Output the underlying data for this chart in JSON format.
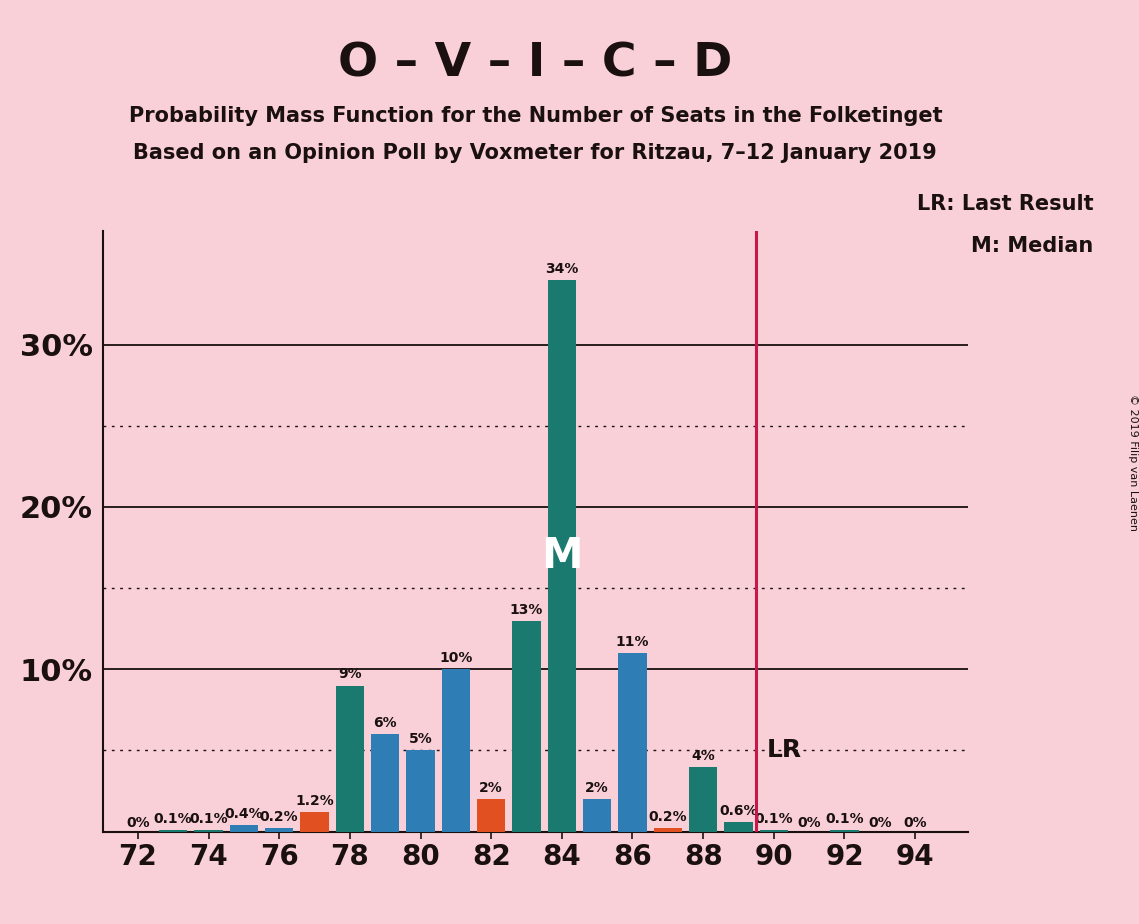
{
  "title_main": "O – V – I – C – D",
  "subtitle1": "Probability Mass Function for the Number of Seats in the Folketinget",
  "subtitle2": "Based on an Opinion Poll by Voxmeter for Ritzau, 7–12 January 2019",
  "copyright": "© 2019 Filip van Laenen",
  "seats": [
    72,
    73,
    74,
    75,
    76,
    77,
    78,
    79,
    80,
    81,
    82,
    83,
    84,
    85,
    86,
    87,
    88,
    89,
    90,
    91,
    92,
    93,
    94
  ],
  "values": [
    0.0,
    0.1,
    0.1,
    0.4,
    0.2,
    1.2,
    9.0,
    6.0,
    5.0,
    10.0,
    2.0,
    13.0,
    34.0,
    2.0,
    11.0,
    0.2,
    4.0,
    0.6,
    0.1,
    0.0,
    0.1,
    0.0,
    0.0
  ],
  "labels": [
    "0%",
    "0.1%",
    "0.1%",
    "0.4%",
    "0.2%",
    "1.2%",
    "9%",
    "6%",
    "5%",
    "10%",
    "2%",
    "13%",
    "34%",
    "2%",
    "11%",
    "0.2%",
    "4%",
    "0.6%",
    "0.1%",
    "0%",
    "0.1%",
    "0%",
    "0%"
  ],
  "colors": [
    "#1b7a70",
    "#1b7a70",
    "#1b7a70",
    "#2e7db5",
    "#2e7db5",
    "#e05020",
    "#1b7a70",
    "#2e7db5",
    "#2e7db5",
    "#2e7db5",
    "#e05020",
    "#1b7a70",
    "#1b7a70",
    "#2e7db5",
    "#2e7db5",
    "#e05020",
    "#1b7a70",
    "#1b7a70",
    "#1b7a70",
    "#1b7a70",
    "#1b7a70",
    "#1b7a70",
    "#1b7a70"
  ],
  "lr_line_x": 89.5,
  "median_x": 84,
  "bg_color": "#f9d0d8",
  "ylim": [
    0,
    37
  ],
  "xlim": [
    71.0,
    95.5
  ],
  "bar_width": 0.8,
  "xtick_positions": [
    72,
    74,
    76,
    78,
    80,
    82,
    84,
    86,
    88,
    90,
    92,
    94
  ],
  "major_hlines": [
    10,
    20,
    30
  ],
  "dotted_hlines": [
    5,
    15,
    25
  ],
  "ytick_positions": [
    10,
    20,
    30
  ],
  "ytick_labels": [
    "10%",
    "20%",
    "30%"
  ],
  "label_fontsize": 10,
  "bar_label_color": "#1a1010",
  "text_color": "#1a1010",
  "title_fontsize": 34,
  "subtitle_fontsize": 15,
  "ytick_fontsize": 22,
  "xtick_fontsize": 20,
  "legend_fontsize": 15,
  "M_fontsize": 30,
  "LR_fontsize": 18,
  "copyright_fontsize": 8
}
